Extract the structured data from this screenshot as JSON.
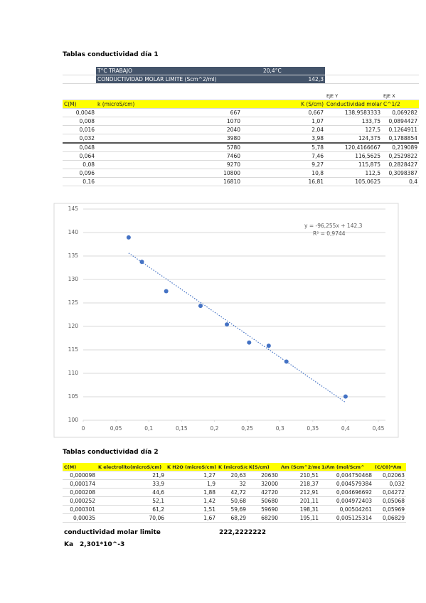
{
  "table1": {
    "title": "Tablas conductividad día 1",
    "info": [
      [
        "T°C TRABAJO",
        "20,4°C"
      ],
      [
        "CONDUCTIVIDAD MOLAR LIMITE (Scm^2/ml)",
        "142,3"
      ]
    ],
    "axis_labels": [
      "EJE Y",
      "EJE X"
    ],
    "header": [
      "C(M)",
      "k (microS/cm)",
      "K (S/cm)",
      "Conductividad molar",
      "C^1/2"
    ],
    "rows": [
      [
        "0,0048",
        "667",
        "0,667",
        "138,9583333",
        "0,069282"
      ],
      [
        "0,008",
        "1070",
        "1,07",
        "133,75",
        "0,0894427"
      ],
      [
        "0,016",
        "2040",
        "2,04",
        "127,5",
        "0,1264911"
      ],
      [
        "0,032",
        "3980",
        "3,98",
        "124,375",
        "0,1788854"
      ],
      [
        "0,048",
        "5780",
        "5,78",
        "120,4166667",
        "0,219089"
      ],
      [
        "0,064",
        "7460",
        "7,46",
        "116,5625",
        "0,2529822"
      ],
      [
        "0,08",
        "9270",
        "9,27",
        "115,875",
        "0,2828427"
      ],
      [
        "0,096",
        "10800",
        "10,8",
        "112,5",
        "0,3098387"
      ],
      [
        "0,16",
        "16810",
        "16,81",
        "105,0625",
        "0,4"
      ]
    ]
  },
  "chart_data": {
    "type": "scatter",
    "series": [
      {
        "color": "#4472c4",
        "x": [
          0.069282,
          0.0894427,
          0.1264911,
          0.1788854,
          0.219089,
          0.2529822,
          0.2828427,
          0.3098387,
          0.4
        ],
        "values": [
          138.9583333,
          133.75,
          127.5,
          124.375,
          120.4166667,
          116.5625,
          115.875,
          112.5,
          105.0625
        ]
      }
    ],
    "xlim": [
      0,
      0.45
    ],
    "xticks": [
      0,
      {
        "value": 0.05,
        "label": "0,05"
      },
      {
        "value": 0.1,
        "label": "0,1"
      },
      {
        "value": 0.15,
        "label": "0,15"
      },
      {
        "value": 0.2,
        "label": "0,2"
      },
      {
        "value": 0.25,
        "label": "0,25"
      },
      {
        "value": 0.3,
        "label": "0,3"
      },
      {
        "value": 0.35,
        "label": "0,35"
      },
      {
        "value": 0.4,
        "label": "0,4"
      },
      {
        "value": 0.45,
        "label": "0,45"
      }
    ],
    "ylim": [
      100,
      145
    ],
    "yticks": [
      100,
      105,
      110,
      115,
      120,
      125,
      130,
      135,
      140,
      145
    ],
    "grid": true,
    "trendline": {
      "label": "y = -96,255x + 142,3",
      "r2_label": "R² = 0,9744",
      "slope": -96.255,
      "intercept": 142.3,
      "color": "#4472c4"
    }
  },
  "table2": {
    "title": "Tablas conductividad día 2",
    "header": [
      "C(M)",
      "K  electrolito(microS/cm)",
      "K H2O (microS/cm)",
      "K (microS/cm",
      "K(S/cm)",
      "Λm (Scm^2/mo",
      "1/Λm (mol/Scm^",
      "(C/C0)*Λm"
    ],
    "rows": [
      [
        "0,000098",
        "21,9",
        "1,27",
        "20,63",
        "20630",
        "210,51",
        "0,004750468",
        "0,02063"
      ],
      [
        "0,000174",
        "33,9",
        "1,9",
        "32",
        "32000",
        "218,37",
        "0,004579384",
        "0,032"
      ],
      [
        "0,000208",
        "44,6",
        "1,88",
        "42,72",
        "42720",
        "212,91",
        "0,004696692",
        "0,04272"
      ],
      [
        "0,000252",
        "52,1",
        "1,42",
        "50,68",
        "50680",
        "201,11",
        "0,004972403",
        "0,05068"
      ],
      [
        "0,000301",
        "61,2",
        "1,51",
        "59,69",
        "59690",
        "198,31",
        "0,00504261",
        "0,05969"
      ],
      [
        "0,00035",
        "70,06",
        "1,67",
        "68,29",
        "68290",
        "195,11",
        "0,005125314",
        "0,06829"
      ]
    ]
  },
  "footer": {
    "limit_label": "conductividad molar limite",
    "limit_value": "222,2222222",
    "ka_label": "Ka",
    "ka_value": "2,301*10^-3"
  }
}
